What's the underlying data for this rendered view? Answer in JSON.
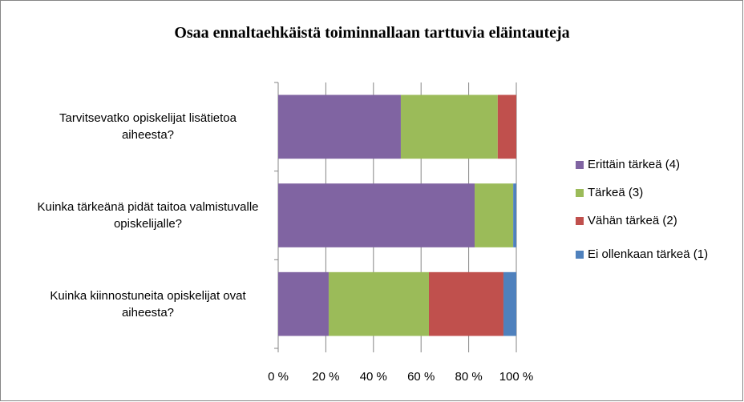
{
  "chart_data": {
    "type": "stacked_bar_horizontal",
    "title": "Osaa ennaltaehkäistä toiminnallaan tarttuvia eläintauteja",
    "categories": [
      "Tarvitsevatko opiskelijat lisätietoa aiheesta?",
      "Kuinka tärkeänä pidät taitoa valmistuvalle opiskelijalle?",
      "Kuinka kiinnostuneita opiskelijat ovat aiheesta?"
    ],
    "series": [
      {
        "name": "Erittäin tärkeä (4)",
        "color": "#8064a2",
        "values": [
          51.5,
          82.5,
          21.2
        ]
      },
      {
        "name": "Tärkeä (3)",
        "color": "#9bbb59",
        "values": [
          40.7,
          16.2,
          42.1
        ]
      },
      {
        "name": "Vähän tärkeä (2)",
        "color": "#c0504d",
        "values": [
          7.8,
          0,
          31.3
        ]
      },
      {
        "name": "Ei ollenkaan tärkeä (1)",
        "color": "#4f81bd",
        "values": [
          0,
          1.3,
          5.4
        ]
      }
    ],
    "xlim": [
      0,
      100
    ],
    "xticks": [
      {
        "value": 0,
        "label": "0 %"
      },
      {
        "value": 20,
        "label": "20 %"
      },
      {
        "value": 40,
        "label": "40 %"
      },
      {
        "value": 60,
        "label": "60 %"
      },
      {
        "value": 80,
        "label": "80 %"
      },
      {
        "value": 100,
        "label": "100 %"
      }
    ],
    "grid": true,
    "legend": "right"
  }
}
